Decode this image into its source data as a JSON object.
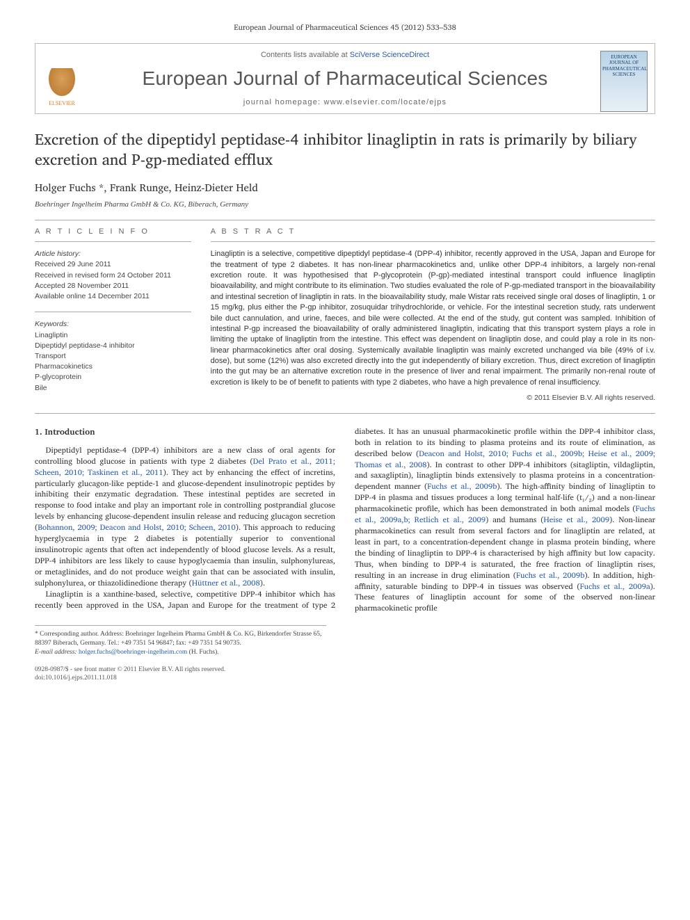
{
  "running_head": "European Journal of Pharmaceutical Sciences 45 (2012) 533–538",
  "top_box": {
    "contents_line_prefix": "Contents lists available at ",
    "contents_line_link": "SciVerse ScienceDirect",
    "journal_title": "European Journal of Pharmaceutical Sciences",
    "homepage_prefix": "journal homepage: ",
    "homepage_url": "www.elsevier.com/locate/ejps",
    "cover_text_line1": "EUROPEAN JOURNAL OF",
    "cover_text_line2": "PHARMACEUTICAL SCIENCES",
    "publisher_label": "ELSEVIER"
  },
  "paper": {
    "title": "Excretion of the dipeptidyl peptidase-4 inhibitor linagliptin in rats is primarily by biliary excretion and P-gp-mediated efflux",
    "authors": "Holger Fuchs *, Frank Runge, Heinz-Dieter Held",
    "affiliation": "Boehringer Ingelheim Pharma GmbH & Co. KG, Biberach, Germany"
  },
  "info_labels": {
    "article_info": "A R T I C L E   I N F O",
    "abstract": "A B S T R A C T"
  },
  "history": {
    "heading": "Article history:",
    "received": "Received 29 June 2011",
    "revised": "Received in revised form 24 October 2011",
    "accepted": "Accepted 28 November 2011",
    "online": "Available online 14 December 2011"
  },
  "keywords": {
    "heading": "Keywords:",
    "items": [
      "Linagliptin",
      "Dipeptidyl peptidase-4 inhibitor",
      "Transport",
      "Pharmacokinetics",
      "P-glycoprotein",
      "Bile"
    ]
  },
  "abstract": "Linagliptin is a selective, competitive dipeptidyl peptidase-4 (DPP-4) inhibitor, recently approved in the USA, Japan and Europe for the treatment of type 2 diabetes. It has non-linear pharmacokinetics and, unlike other DPP-4 inhibitors, a largely non-renal excretion route. It was hypothesised that P-glycoprotein (P-gp)-mediated intestinal transport could influence linagliptin bioavailability, and might contribute to its elimination. Two studies evaluated the role of P-gp-mediated transport in the bioavailability and intestinal secretion of linagliptin in rats. In the bioavailability study, male Wistar rats received single oral doses of linagliptin, 1 or 15 mg/kg, plus either the P-gp inhibitor, zosuquidar trihydrochloride, or vehicle. For the intestinal secretion study, rats underwent bile duct cannulation, and urine, faeces, and bile were collected. At the end of the study, gut content was sampled. Inhibition of intestinal P-gp increased the bioavailability of orally administered linagliptin, indicating that this transport system plays a role in limiting the uptake of linagliptin from the intestine. This effect was dependent on linagliptin dose, and could play a role in its non-linear pharmacokinetics after oral dosing. Systemically available linagliptin was mainly excreted unchanged via bile (49% of i.v. dose), but some (12%) was also excreted directly into the gut independently of biliary excretion. Thus, direct excretion of linagliptin into the gut may be an alternative excretion route in the presence of liver and renal impairment. The primarily non-renal route of excretion is likely to be of benefit to patients with type 2 diabetes, who have a high prevalence of renal insufficiency.",
  "copyright": "© 2011 Elsevier B.V. All rights reserved.",
  "intro": {
    "heading": "1. Introduction",
    "p1a": "Dipeptidyl peptidase-4 (DPP-4) inhibitors are a new class of oral agents for controlling blood glucose in patients with type 2 diabetes (",
    "p1cite1": "Del Prato et al., 2011; Scheen, 2010; Taskinen et al., 2011",
    "p1b": "). They act by enhancing the effect of incretins, particularly glucagon-like peptide-1 and glucose-dependent insulinotropic peptides by inhibiting their enzymatic degradation. These intestinal peptides are secreted in response to food intake and play an important role in controlling postprandial glucose levels by enhancing glucose-dependent insulin release and reducing glucagon secretion (",
    "p1cite2": "Bohannon, 2009; Deacon and Holst, 2010; Scheen, 2010",
    "p1c": "). This approach to reducing hyperglycaemia in type 2 diabetes is potentially superior to conventional insulinotropic agents that often act independently of blood glucose levels. As a result, DPP-4 inhibitors are less likely to cause hypoglycaemia than insulin, sulphonylureas, or metaglinides, and do not produce weight gain that can be associated with insulin, sulphonylurea, or thiazolidinedione therapy (",
    "p1cite3": "Hüttner et al., 2008",
    "p1d": ").",
    "p2a": "Linagliptin is a xanthine-based, selective, competitive DPP-4 inhibitor which has recently been approved in the USA, Japan and Europe for the treatment of type 2 diabetes. It has an unusual pharmacokinetic profile within the DPP-4 inhibitor class, both in relation to its binding to plasma proteins and its route of elimination, as described below (",
    "p2cite1": "Deacon and Holst, 2010; Fuchs et al., 2009b; Heise et al., 2009; Thomas et al., 2008",
    "p2b": "). In contrast to other DPP-4 inhibitors (sitagliptin, vildagliptin, and saxagliptin), linagliptin binds extensively to plasma proteins in a concentration-dependent manner (",
    "p2cite2": "Fuchs et al., 2009b",
    "p2c": "). The high-affinity binding of linagliptin to DPP-4 in plasma and tissues produces a long terminal half-life (t₁/₂) and a non-linear pharmacokinetic profile, which has been demonstrated in both animal models (",
    "p2cite3": "Fuchs et al., 2009a,b; Retlich et al., 2009",
    "p2d": ") and humans (",
    "p2cite4": "Heise et al., 2009",
    "p2e": "). Non-linear pharmacokinetics can result from several factors and for linagliptin are related, at least in part, to a concentration-dependent change in plasma protein binding, where the binding of linagliptin to DPP-4 is characterised by high affinity but low capacity. Thus, when binding to DPP-4 is saturated, the free fraction of linagliptin rises, resulting in an increase in drug elimination (",
    "p2cite5": "Fuchs et al., 2009b",
    "p2f": "). In addition, high-affinity, saturable binding to DPP-4 in tissues was observed (",
    "p2cite6": "Fuchs et al., 2009a",
    "p2g": "). These features of linagliptin account for some of the observed non-linear pharmacokinetic profile"
  },
  "footnote": {
    "corr": "* Corresponding author. Address: Boehringer Ingelheim Pharma GmbH & Co. KG, Birkendorfer Strasse 65, 88397 Biberach, Germany. Tel.: +49 7351 54 96847; fax: +49 7351 54 90735.",
    "email_label": "E-mail address: ",
    "email": "holger.fuchs@boehringer-ingelheim.com",
    "email_suffix": " (H. Fuchs)."
  },
  "bottom": {
    "issn": "0928-0987/$ - see front matter © 2011 Elsevier B.V. All rights reserved.",
    "doi": "doi:10.1016/j.ejps.2011.11.018"
  },
  "colors": {
    "link": "#2a5ca8",
    "publisher": "#e67817",
    "rule": "#aaaaaa"
  }
}
